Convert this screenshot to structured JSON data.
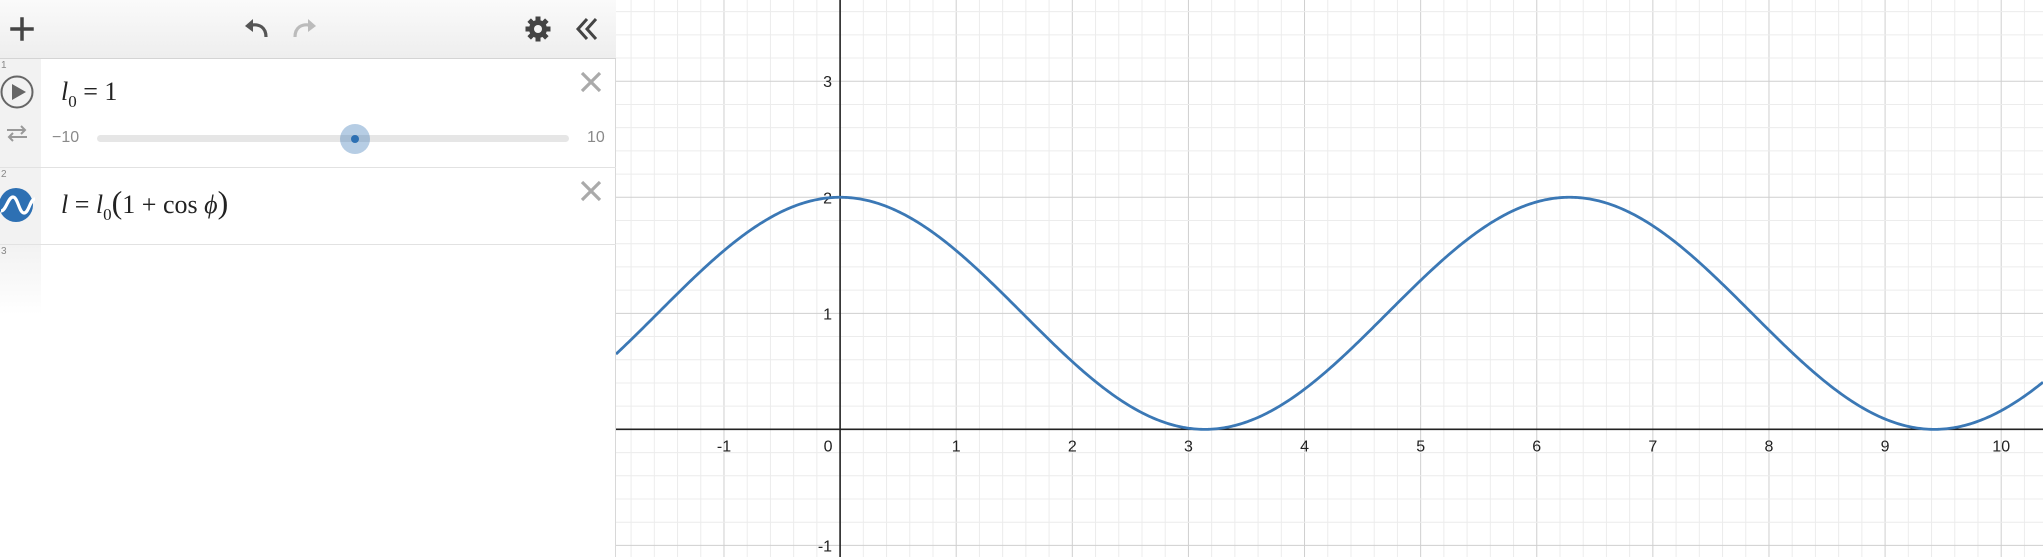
{
  "toolbar": {
    "add_icon": "plus-icon",
    "undo_icon": "undo-icon",
    "redo_icon": "redo-icon",
    "settings_icon": "gear-icon",
    "collapse_icon": "double-chevron-left-icon"
  },
  "expressions": [
    {
      "index": "1",
      "variable": "l",
      "subscript": "0",
      "equals": "=",
      "value": "1",
      "slider": {
        "min": "−10",
        "max": "10",
        "value": 1,
        "min_value": -10,
        "max_value": 10
      },
      "icons": [
        "play-icon",
        "loop-icon",
        "close-icon"
      ]
    },
    {
      "index": "2",
      "lhs": "l",
      "equals": "=",
      "rhs_var": "l",
      "rhs_sub": "0",
      "open_paren": "(",
      "one": "1",
      "plus": "+",
      "cos": "cos",
      "phi": "ϕ",
      "close_paren": ")",
      "color": "#2d70b3",
      "icons": [
        "wave-icon",
        "close-icon"
      ]
    },
    {
      "index": "3"
    }
  ],
  "chart_data": {
    "type": "line",
    "xlim": [
      -1.93,
      10.36
    ],
    "ylim": [
      -1.1,
      3.7
    ],
    "x_ticks": [
      "-1",
      "0",
      "1",
      "2",
      "3",
      "4",
      "5",
      "6",
      "7",
      "8",
      "9",
      "10"
    ],
    "y_ticks": [
      "-1",
      "1",
      "2",
      "3"
    ],
    "grid": true,
    "series": [
      {
        "expression": "l = l0(1 + cos ϕ)",
        "l0": 1,
        "color": "#3b78b5"
      }
    ]
  }
}
